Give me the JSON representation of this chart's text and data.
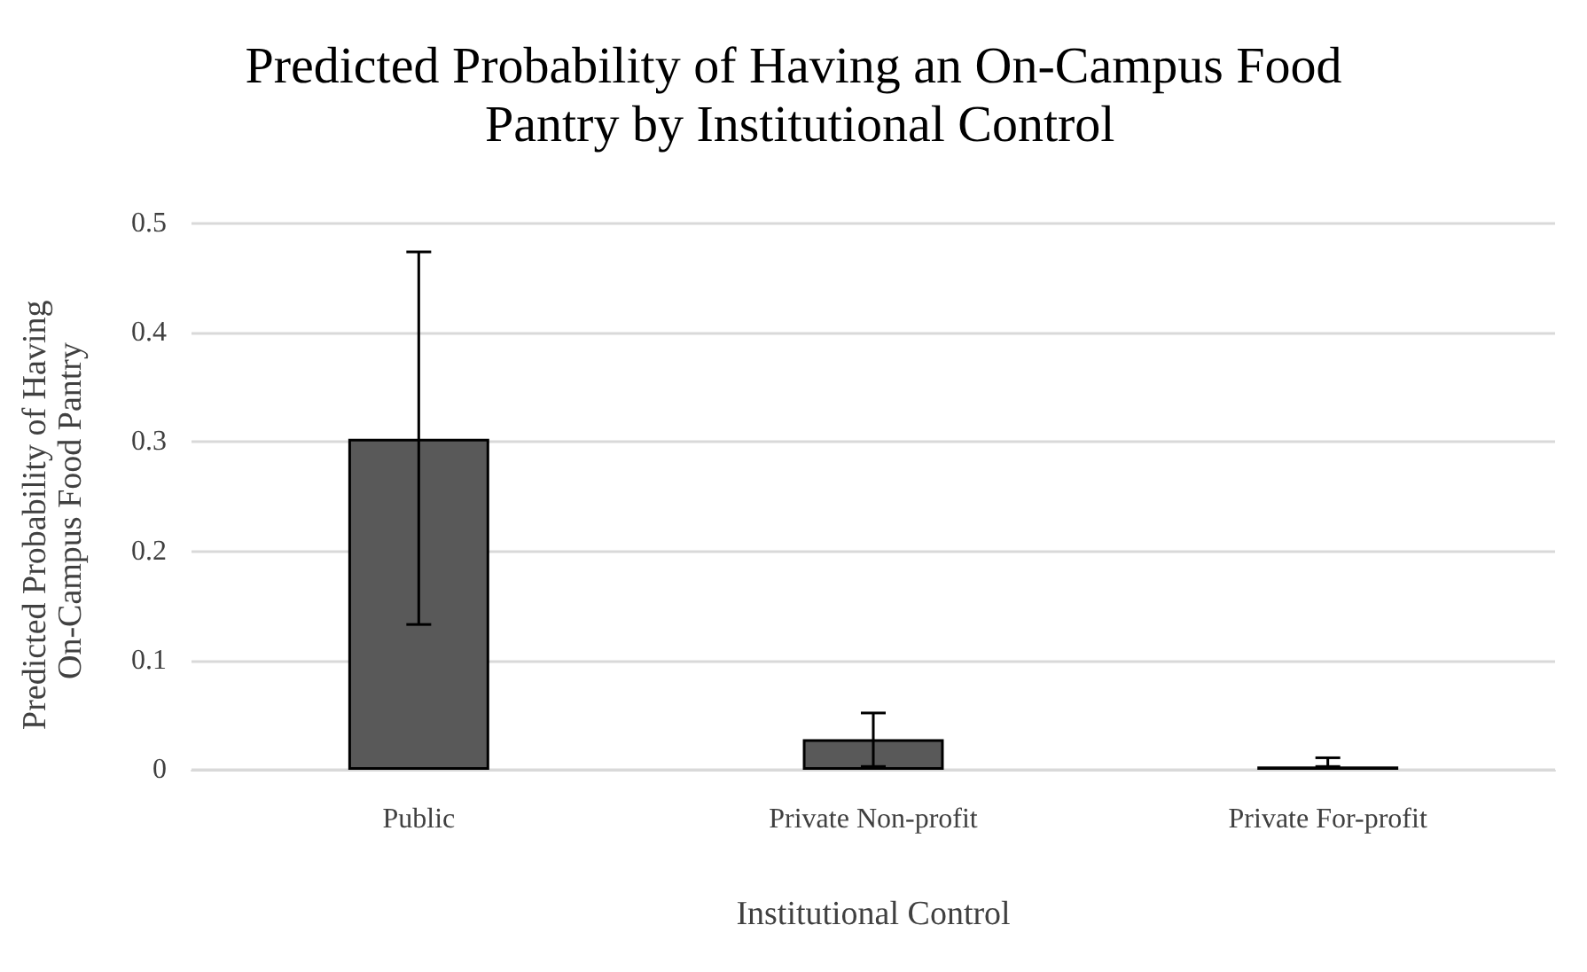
{
  "chart_data": {
    "type": "bar",
    "title": "Predicted Probability of Having an On-Campus Food Pantry by Institutional Control",
    "xlabel": "Institutional Control",
    "ylabel": "Predicted Probability of Having On-Campus Food Pantry",
    "categories": [
      "Public",
      "Private Non-profit",
      "Private For-profit"
    ],
    "values": [
      0.303,
      0.028,
      0.003
    ],
    "errors": [
      [
        0.133,
        0.474
      ],
      [
        0.003,
        0.052
      ],
      [
        0.003,
        0.011
      ]
    ],
    "color": "#595959",
    "ylim": [
      0,
      0.5
    ],
    "yticks": [
      0,
      0.1,
      0.2,
      0.3,
      0.4,
      0.5
    ],
    "grid": "y"
  }
}
